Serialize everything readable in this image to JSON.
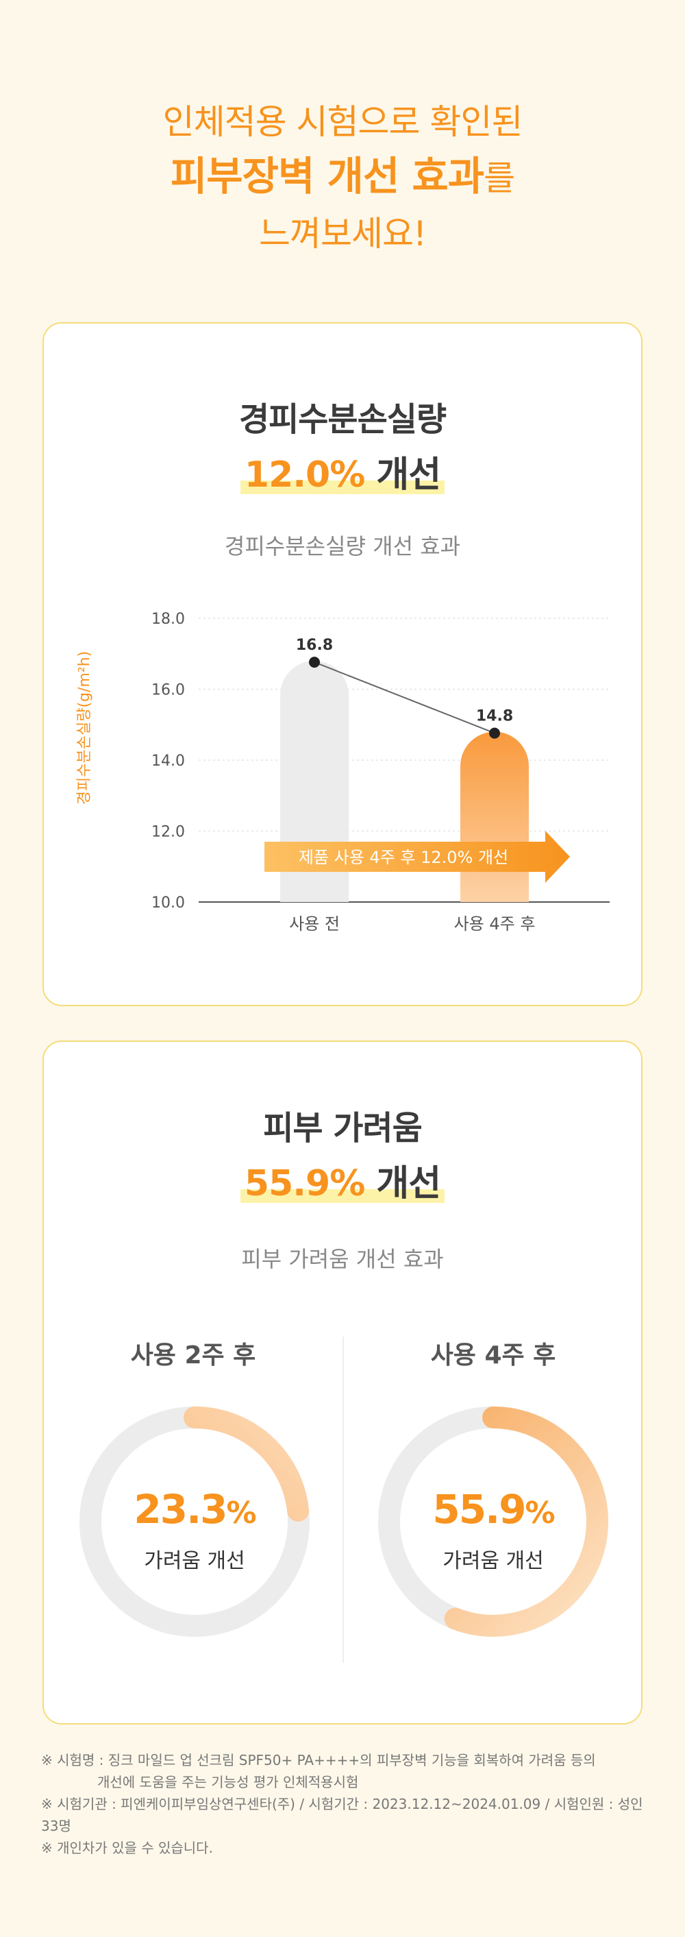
{
  "hero": {
    "line1": "인체적용 시험으로 확인된",
    "line2_bold": "피부장벽 개선 효과",
    "line2_tail": "를",
    "line3": "느껴보세요!"
  },
  "card1": {
    "title": "경피수분손실량",
    "result_pct": "12.0%",
    "result_word": "개선",
    "subtitle": "경피수분손실량 개선 효과",
    "arrow_label": "제품 사용 4주 후 12.0% 개선"
  },
  "card2": {
    "title": "피부 가려움",
    "result_pct": "55.9%",
    "result_word": "개선",
    "subtitle": "피부 가려움 개선 효과",
    "left_title": "사용 2주 후",
    "right_title": "사용 4주 후",
    "left_value": "23.3",
    "right_value": "55.9",
    "unit": "%",
    "label": "가려움 개선"
  },
  "notes": {
    "line1": "※ 시험명 : 징크 마일드 업 선크림 SPF50+ PA++++의 피부장벽 기능을 회복하여 가려움 등의",
    "line1b": "개선에 도움을 주는 기능성 평가 인체적용시험",
    "line2": "※ 시험기관 : 피엔케이피부임상연구센타(주) / 시험기간 : 2023.12.12~2024.01.09 / 시험인원 : 성인 33명",
    "line3": "※ 개인차가 있을 수 있습니다."
  },
  "colors": {
    "accent": "#f7931e",
    "bar_before": "#ececec",
    "ring_track": "#ececec",
    "card_border": "#f6dc7a",
    "highlight": "#fdf3a8"
  },
  "chart_data": [
    {
      "type": "bar",
      "categories": [
        "사용 전",
        "사용 4주 후"
      ],
      "values": [
        16.8,
        14.8
      ],
      "data_labels": [
        "16.8",
        "14.8"
      ],
      "ylabel": "경피수분손실량(g/m²h)",
      "ylim": [
        10.0,
        18.0
      ],
      "yticks": [
        10.0,
        12.0,
        14.0,
        16.0,
        18.0
      ],
      "ytick_labels": [
        "10.0",
        "12.0",
        "14.0",
        "16.0",
        "18.0"
      ],
      "grid": true,
      "trend_line": true
    },
    {
      "type": "pie",
      "variant": "donut",
      "title": "사용 2주 후",
      "value_pct": 23.3
    },
    {
      "type": "pie",
      "variant": "donut",
      "title": "사용 4주 후",
      "value_pct": 55.9
    }
  ]
}
